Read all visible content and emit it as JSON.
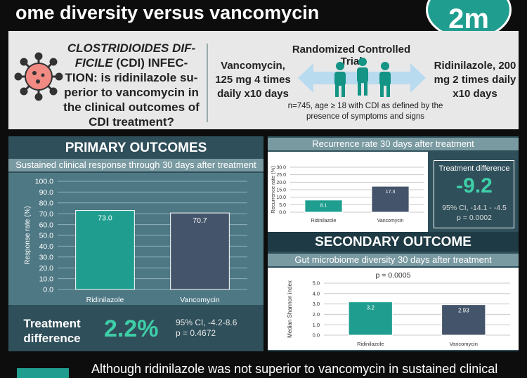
{
  "header": {
    "title": "ome diversity versus vancomycin",
    "logo_text": "2m"
  },
  "trial": {
    "infection_italic": "CLOSTRIDIOIDES DIF-FICILE",
    "infection_rest": " (CDI) INFEC-TION: is ridinilazole su-perior to vancomycin in the clinical outcomes of CDI treatment?",
    "vanco_dose": "Vancomycin, 125 mg 4 times daily x10 days",
    "rct_title": "Randomized Controlled Trial",
    "ridi_dose": "Ridinilazole, 200 mg 2 times daily x10 days",
    "note": "n=745, age ≥ 18 with CDI as defined by the presence of symptoms and signs"
  },
  "primary": {
    "heading": "PRIMARY OUTCOMES",
    "subheading": "Sustained clinical response through 30 days after treatment",
    "diff_label": "Treatment difference",
    "diff_value": "2.2%",
    "ci": "95% CI, -4.2-8.6",
    "p": "p = 0.4672"
  },
  "recurrence": {
    "subheading": "Recurrence rate 30 days after treatment",
    "diff_label": "Treatment difference",
    "diff_value": "-9.2",
    "ci": "95% CI, -14.1 - -4.5",
    "p": "p = 0.0002"
  },
  "secondary": {
    "heading": "SECONDARY OUTCOME",
    "subheading": "Gut microbiome diversity 30 days after treatment",
    "p": "p = 0.0005"
  },
  "conclusion": {
    "text": "Although ridinilazole was not superior to vancomycin in sustained clinical"
  },
  "colors": {
    "teal": "#1f9e8f",
    "slate": "#44546a",
    "panel": "#2f4f5a",
    "accent_green": "#3ecfa8"
  },
  "chart_data": [
    {
      "type": "bar",
      "title": "Sustained clinical response through 30 days after treatment",
      "categories": [
        "Ridinilazole",
        "Vancomycin"
      ],
      "values": [
        73.0,
        70.7
      ],
      "value_labels": [
        "73.0",
        "70.7"
      ],
      "ylabel": "Response rate (%)",
      "ylim": [
        0,
        100
      ],
      "yticks": [
        "0.0",
        "10.0",
        "20.0",
        "30.0",
        "40.0",
        "50.0",
        "60.0",
        "70.0",
        "80.0",
        "90.0",
        "100.0"
      ],
      "colors": [
        "#1f9e8f",
        "#44546a"
      ],
      "grid": true
    },
    {
      "type": "bar",
      "title": "Recurrence rate 30 days after treatment",
      "categories": [
        "Ridinilazole",
        "Vancomycin"
      ],
      "values": [
        8.1,
        17.3
      ],
      "value_labels": [
        "8.1",
        "17.3"
      ],
      "ylabel": "Recurrence rate (%)",
      "ylim": [
        0,
        30
      ],
      "yticks": [
        "0.0",
        "5.0",
        "10.0",
        "15.0",
        "20.0",
        "25.0",
        "30.0"
      ],
      "colors": [
        "#1f9e8f",
        "#44546a"
      ],
      "grid": true
    },
    {
      "type": "bar",
      "title": "Gut microbiome diversity 30 days after treatment",
      "categories": [
        "Ridinilazole",
        "Vancomycin"
      ],
      "values": [
        3.2,
        2.93
      ],
      "value_labels": [
        "3.2",
        "2.93"
      ],
      "ylabel": "Median Shannon index",
      "ylim": [
        0,
        5
      ],
      "yticks": [
        "0.0",
        "1.0",
        "2.0",
        "3.0",
        "4.0",
        "5.0"
      ],
      "colors": [
        "#1f9e8f",
        "#44546a"
      ],
      "grid": true
    }
  ]
}
